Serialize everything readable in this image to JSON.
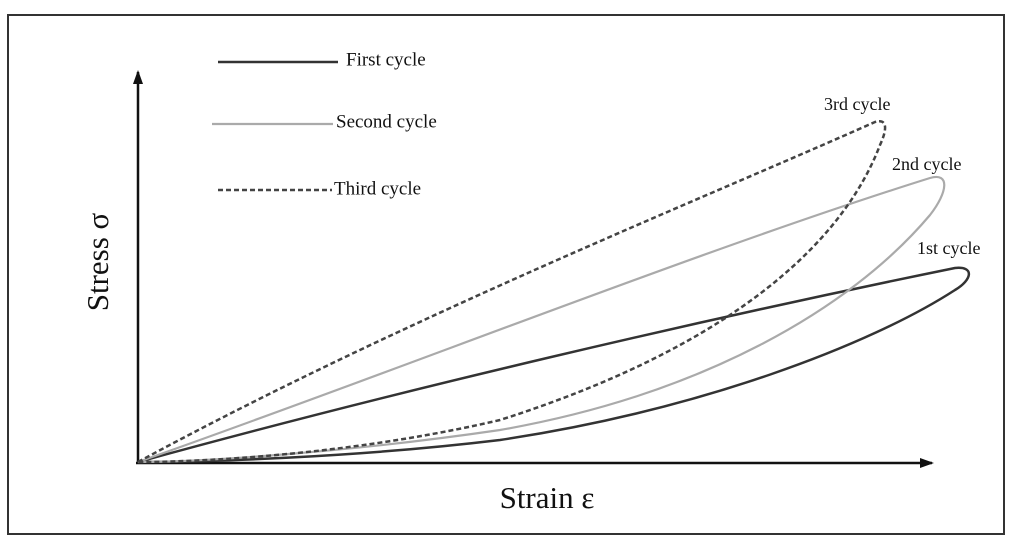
{
  "legend": [
    {
      "label": "First cycle"
    },
    {
      "label": "Second cycle"
    },
    {
      "label": "Third cycle"
    }
  ],
  "annotations": [
    "3rd cycle",
    "2nd cycle",
    "1st cycle"
  ],
  "axes": {
    "x_label": "Strain ε",
    "y_label": "Stress σ"
  }
}
